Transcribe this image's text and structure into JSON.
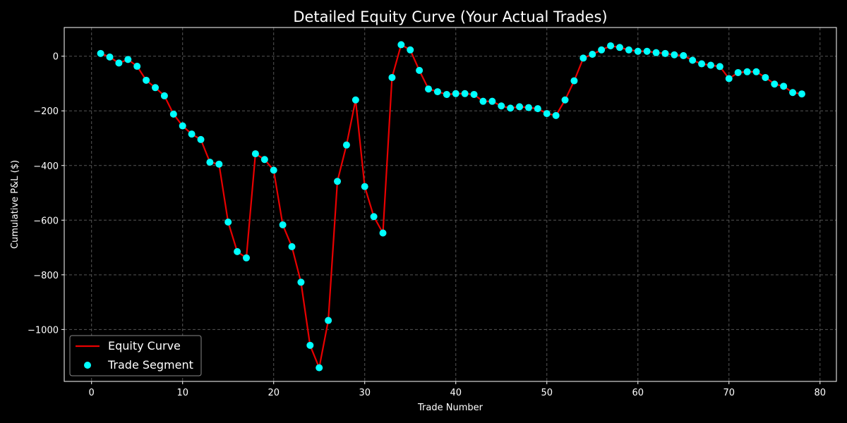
{
  "colors": {
    "background": "#000000",
    "line": "#e80000",
    "marker": "#00ffff",
    "grid": "#555555",
    "text": "#ffffff"
  },
  "chart_data": {
    "type": "line",
    "title": "Detailed Equity Curve (Your Actual Trades)",
    "xlabel": "Trade Number",
    "ylabel": "Cumulative P&L ($)",
    "xlim": [
      -3,
      81.8
    ],
    "ylim": [
      -1190,
      105
    ],
    "xticks": [
      0,
      10,
      20,
      30,
      40,
      50,
      60,
      70,
      80
    ],
    "yticks": [
      0,
      -200,
      -400,
      -600,
      -800,
      -1000
    ],
    "ytick_labels": [
      "0",
      "−200",
      "−400",
      "−600",
      "−800",
      "−1000"
    ],
    "grid": true,
    "legend_position": "lower-left",
    "series": [
      {
        "name": "Equity Curve",
        "x": [
          1,
          2,
          3,
          4,
          5,
          6,
          7,
          8,
          9,
          10,
          11,
          12,
          13,
          14,
          15,
          16,
          17,
          18,
          19,
          20,
          21,
          22,
          23,
          24,
          25,
          26,
          27,
          28,
          29,
          30,
          31,
          32,
          33,
          34,
          35,
          36,
          37,
          38,
          39,
          40,
          41,
          42,
          43,
          44,
          45,
          46,
          47,
          48,
          49,
          50,
          51,
          52,
          53,
          54,
          55,
          56,
          57,
          58,
          59,
          60,
          61,
          62,
          63,
          64,
          65,
          66,
          67,
          68,
          69,
          70,
          71,
          72,
          73,
          74,
          75,
          76,
          77,
          78
        ],
        "y": [
          10,
          -3,
          -25,
          -12,
          -37,
          -88,
          -115,
          -145,
          -212,
          -255,
          -285,
          -305,
          -388,
          -395,
          -607,
          -715,
          -738,
          -357,
          -378,
          -417,
          -617,
          -697,
          -827,
          -1058,
          -1140,
          -967,
          -458,
          -325,
          -160,
          -477,
          -587,
          -647,
          -78,
          42,
          23,
          -52,
          -120,
          -130,
          -140,
          -137,
          -137,
          -140,
          -165,
          -165,
          -182,
          -190,
          -185,
          -188,
          -192,
          -210,
          -217,
          -160,
          -90,
          -7,
          7,
          23,
          38,
          32,
          23,
          18,
          18,
          13,
          10,
          5,
          2,
          -15,
          -28,
          -33,
          -38,
          -82,
          -60,
          -57,
          -57,
          -78,
          -102,
          -110,
          -133,
          -138
        ],
        "color": "#e80000"
      },
      {
        "name": "Trade Segment",
        "marker_color": "#00ffff"
      }
    ]
  }
}
